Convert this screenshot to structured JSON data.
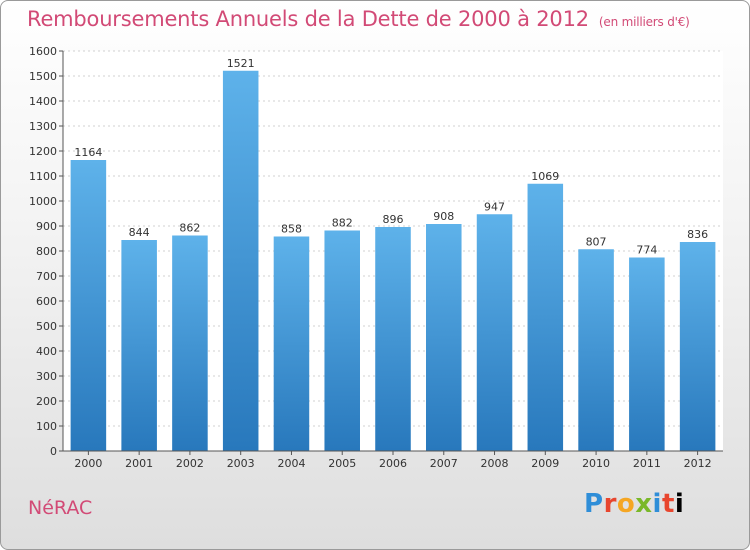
{
  "title": "Remboursements Annuels de la Dette de 2000 à 2012",
  "subtitle": "(en milliers d'€)",
  "city": "NéRAC",
  "logo_text": "Proxiti",
  "colors": {
    "title": "#d24a76",
    "bar_top": "#5aaee8",
    "bar_bottom": "#2a7fc0"
  },
  "chart_data": {
    "type": "bar",
    "title": "Remboursements Annuels de la Dette de 2000 à 2012",
    "subtitle": "(en milliers d'€)",
    "categories": [
      "2000",
      "2001",
      "2002",
      "2003",
      "2004",
      "2005",
      "2006",
      "2007",
      "2008",
      "2009",
      "2010",
      "2011",
      "2012"
    ],
    "values": [
      1164,
      844,
      862,
      1521,
      858,
      882,
      896,
      908,
      947,
      1069,
      807,
      774,
      836
    ],
    "ylim": [
      0,
      1600
    ],
    "yticks": [
      0,
      100,
      200,
      300,
      400,
      500,
      600,
      700,
      800,
      900,
      1000,
      1100,
      1200,
      1300,
      1400,
      1500,
      1600
    ],
    "grid": true
  }
}
